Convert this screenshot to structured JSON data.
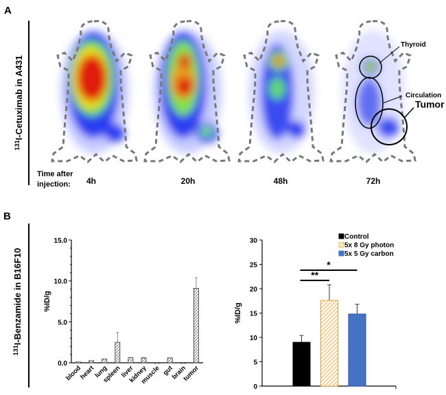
{
  "panel_a": {
    "label": "A",
    "ylabel_sup": "131",
    "ylabel": "I-Cetuximab in A431",
    "time_label_1": "Time after",
    "time_label_2": "injection:",
    "timepoints": [
      "4h",
      "20h",
      "48h",
      "72h"
    ],
    "annotations": {
      "thyroid": "Thyroid",
      "circulation": "Circulation",
      "tumor": "Tumor"
    }
  },
  "panel_b": {
    "label": "B",
    "ylabel_sup": "131",
    "ylabel": "I-Benzamide in B16F10"
  },
  "chart_data": [
    {
      "type": "bar",
      "ylabel": "%ID/g",
      "ylim": [
        0,
        15
      ],
      "yticks": [
        "0.0",
        "5.0",
        "10.0",
        "15.0"
      ],
      "categories": [
        "blood",
        "heart",
        "lung",
        "spleen",
        "liver",
        "kidney",
        "muscle",
        "gut",
        "brain",
        "tumor"
      ],
      "values": [
        0.1,
        0.25,
        0.45,
        2.5,
        0.65,
        0.6,
        0.05,
        0.6,
        0.05,
        9.1
      ],
      "errors": [
        0,
        0,
        0,
        1.2,
        0,
        0.05,
        0,
        0,
        0,
        1.3
      ],
      "fill": "hatched gray"
    },
    {
      "type": "bar",
      "ylabel": "%ID/g",
      "ylim": [
        0,
        30
      ],
      "yticks": [
        "0",
        "5",
        "10",
        "15",
        "20",
        "25",
        "30"
      ],
      "legend": "top-right",
      "series": [
        {
          "name": "Control",
          "value": 9.0,
          "error": 1.4,
          "color": "#000000"
        },
        {
          "name": "5x 8 Gy photon",
          "value": 17.6,
          "error": 3.2,
          "color": "#f5b957"
        },
        {
          "name": "5x 5 Gy carbon",
          "value": 14.8,
          "error": 2.0,
          "color": "#4472c4"
        }
      ],
      "significance": [
        {
          "label": "*",
          "from": "Control",
          "to": "5x 5 Gy carbon",
          "y": 23.8
        },
        {
          "label": "**",
          "from": "Control",
          "to": "5x 8 Gy photon",
          "y": 21.7
        }
      ]
    }
  ]
}
